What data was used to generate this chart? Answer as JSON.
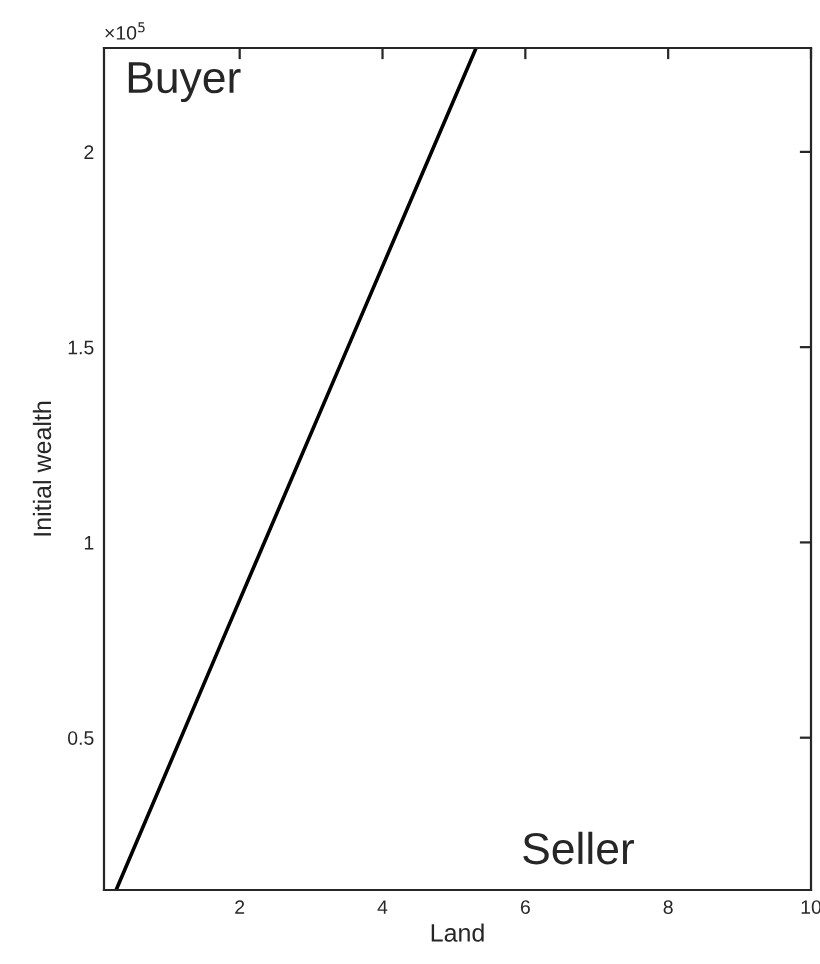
{
  "chart_data": {
    "type": "line",
    "xlabel": "Land",
    "ylabel": "Initial wealth",
    "annotations": [
      "×10$^{5}$",
      "Buyer",
      "Seller"
    ],
    "x": [
      0.27,
      1.8,
      3.6,
      5.31
    ],
    "series": [
      {
        "color": "#000000",
        "values": [
          0.11,
          0.767,
          1.536,
          2.266
        ]
      }
    ],
    "xlim": [
      0.1,
      10
    ],
    "xticks": [
      2,
      4,
      6,
      8,
      10
    ],
    "ylim": [
      0.11,
      2.266
    ],
    "yticks": [
      0.5,
      1,
      1.5,
      2
    ],
    "grid": false,
    "legend": false,
    "marker": "none",
    "line_style": "solid"
  }
}
